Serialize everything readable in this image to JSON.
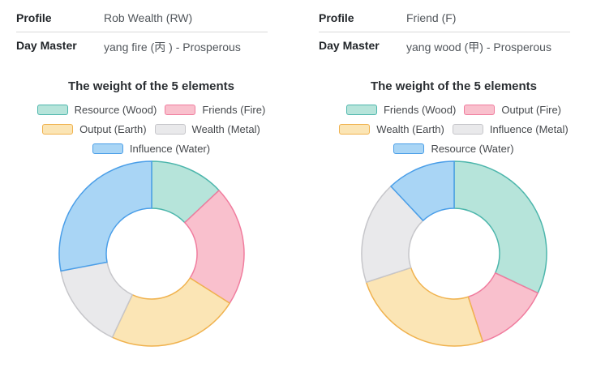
{
  "panels": [
    {
      "profile_label": "Profile",
      "profile_value": "Rob Wealth (RW)",
      "day_master_label": "Day Master",
      "day_master_value": "yang fire (丙 ) - Prosperous"
    },
    {
      "profile_label": "Profile",
      "profile_value": "Friend (F)",
      "day_master_label": "Day Master",
      "day_master_value": "yang wood (甲) - Prosperous"
    }
  ],
  "chart_data": [
    {
      "type": "pie",
      "donut": true,
      "title": "The weight of the 5 elements",
      "unit": "percent",
      "start_angle_deg": 0,
      "direction": "clockwise",
      "inner_radius_ratio": 0.49,
      "legend_position": "top",
      "series": [
        {
          "name": "Resource (Wood)",
          "value": 13,
          "fill": "#b6e4da",
          "stroke": "#4db6ac"
        },
        {
          "name": "Friends (Fire)",
          "value": 21,
          "fill": "#f9c0cd",
          "stroke": "#f07c9e"
        },
        {
          "name": "Output (Earth)",
          "value": 23,
          "fill": "#fbe5b5",
          "stroke": "#f0b24e"
        },
        {
          "name": "Wealth (Metal)",
          "value": 15,
          "fill": "#e9e9eb",
          "stroke": "#c6c6ca"
        },
        {
          "name": "Influence (Water)",
          "value": 28,
          "fill": "#a9d5f5",
          "stroke": "#4a9ee8"
        }
      ]
    },
    {
      "type": "pie",
      "donut": true,
      "title": "The weight of the 5 elements",
      "unit": "percent",
      "start_angle_deg": 0,
      "direction": "clockwise",
      "inner_radius_ratio": 0.49,
      "legend_position": "top",
      "series": [
        {
          "name": "Friends (Wood)",
          "value": 32,
          "fill": "#b6e4da",
          "stroke": "#4db6ac"
        },
        {
          "name": "Output (Fire)",
          "value": 13,
          "fill": "#f9c0cd",
          "stroke": "#f07c9e"
        },
        {
          "name": "Wealth (Earth)",
          "value": 25,
          "fill": "#fbe5b5",
          "stroke": "#f0b24e"
        },
        {
          "name": "Influence (Metal)",
          "value": 18,
          "fill": "#e9e9eb",
          "stroke": "#c6c6ca"
        },
        {
          "name": "Resource (Water)",
          "value": 12,
          "fill": "#a9d5f5",
          "stroke": "#4a9ee8"
        }
      ]
    }
  ]
}
